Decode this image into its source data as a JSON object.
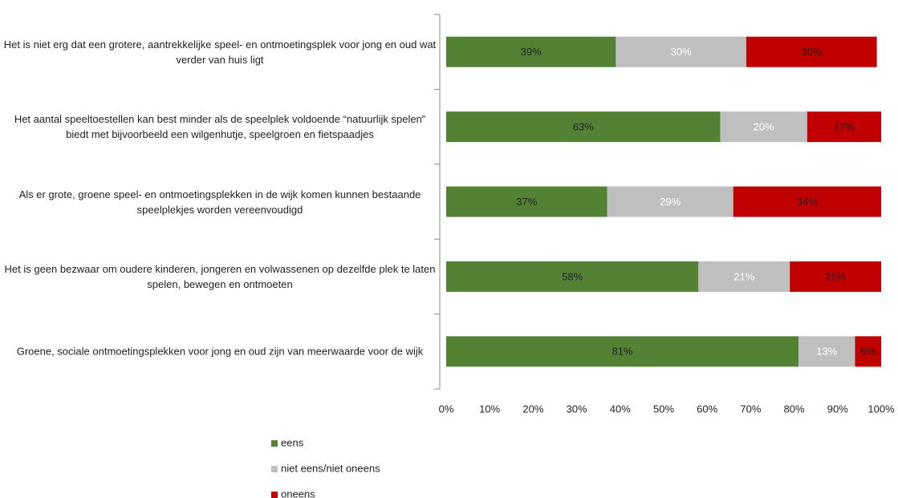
{
  "chart_data": {
    "type": "stacked_bar_horizontal",
    "categories": [
      "Het is niet erg dat een grotere, aantrekkelijke speel- en ontmoetingsplek voor jong en oud wat verder van huis ligt",
      "Het aantal speeltoestellen kan best minder als de speelplek voldoende “natuurlijk spelen” biedt met bijvoorbeeld een wilgenhutje, speelgroen en fietspaadjes",
      "Als er grote, groene speel- en ontmoetingsplekken in de wijk komen kunnen bestaande speelplekjes worden vereenvoudigd",
      "Het is geen bezwaar om oudere kinderen, jongeren en volwassenen op dezelfde plek  te laten spelen, bewegen en ontmoeten",
      "Groene, sociale ontmoetingsplekken voor jong en oud zijn van meerwaarde voor de wijk"
    ],
    "series": [
      {
        "name": "eens",
        "color": "#548235",
        "values": [
          39,
          63,
          37,
          58,
          81
        ],
        "value_labels": [
          "39%",
          "63%",
          "37%",
          "58%",
          "81%"
        ]
      },
      {
        "name": "niet eens/niet oneens",
        "color": "#bfbfbf",
        "values": [
          30,
          20,
          29,
          21,
          13
        ],
        "value_labels": [
          "30%",
          "20%",
          "29%",
          "21%",
          "13%"
        ]
      },
      {
        "name": "oneens",
        "color": "#c00000",
        "values": [
          30,
          17,
          34,
          21,
          6
        ],
        "value_labels": [
          "30%",
          "17%",
          "34%",
          "21%",
          "6%"
        ]
      }
    ],
    "xlim": [
      0,
      100
    ],
    "xticks": [
      {
        "value": 0,
        "label": "0%"
      },
      {
        "value": 10,
        "label": "10%"
      },
      {
        "value": 20,
        "label": "20%"
      },
      {
        "value": 30,
        "label": "30%"
      },
      {
        "value": 40,
        "label": "40%"
      },
      {
        "value": 50,
        "label": "50%"
      },
      {
        "value": 60,
        "label": "60%"
      },
      {
        "value": 70,
        "label": "70%"
      },
      {
        "value": 80,
        "label": "80%"
      },
      {
        "value": 90,
        "label": "90%"
      },
      {
        "value": 100,
        "label": "100%"
      }
    ],
    "legend": "bottom"
  }
}
